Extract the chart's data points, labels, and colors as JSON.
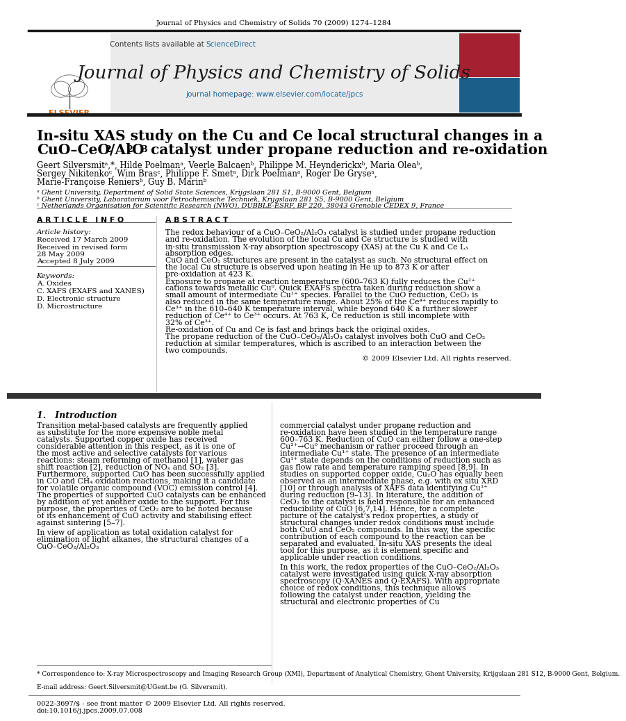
{
  "journal_ref": "Journal of Physics and Chemistry of Solids 70 (2009) 1274–1284",
  "journal_name": "Journal of Physics and Chemistry of Solids",
  "journal_url": "journal homepage: www.elsevier.com/locate/jpcs",
  "sciencedirect_text": "Contents lists available at ",
  "sciencedirect_link": "ScienceDirect",
  "title_line1": "In-situ XAS study on the Cu and Ce local structural changes in a",
  "title_line2": "CuO–CeO",
  "title_line2b": "2",
  "title_line2c": "/Al",
  "title_line2d": "2",
  "title_line2e": "O",
  "title_line2f": "3",
  "title_line2g": " catalyst under propane reduction and re-oxidation",
  "authors": "Geert Silversmitᵃ,*, Hilde Poelmanᵃ, Veerle Balcaenᵇ, Philippe M. Heynderickxᵇ, Maria Oleaᵇ,",
  "authors2": "Sergey Nikitenkoᶜ, Wim Brasᶜ, Philippe F. Smetᵃ, Dirk Poelmanᵃ, Roger De Gryseᵃ,",
  "authors3": "Marie-Françoise Reniersᵇ, Guy B. Marinᵇ",
  "aff_a": "ᵃ Ghent University, Department of Solid State Sciences, Krijgslaan 281 S1, B-9000 Gent, Belgium",
  "aff_b": "ᵇ Ghent University, Laboratorium voor Petrochemische Techniek, Krijgslaan 281 S5, B-9000 Gent, Belgium",
  "aff_c": "ᶜ Netherlands Organisation for Scientific Research (NWO), DUBBLE-ESRF, BP 220, 38043 Grenoble CEDEX 9, France",
  "article_info_header": "A R T I C L E   I N F O",
  "abstract_header": "A B S T R A C T",
  "article_history": "Article history:",
  "received": "Received 17 March 2009",
  "revised": "Received in revised form",
  "revised2": "28 May 2009",
  "accepted": "Accepted 8 July 2009",
  "keywords_header": "Keywords:",
  "kw1": "A. Oxides",
  "kw2": "C. XAFS (EXAFS and XANES)",
  "kw3": "D. Electronic structure",
  "kw4": "D. Microstructure",
  "abstract_para1": "The redox behaviour of a CuO–CeO₂/Al₂O₃ catalyst is studied under propane reduction and re-oxidation. The evolution of the local Cu and Ce structure is studied with in-situ transmission X-ray absorption spectroscopy (XAS) at the Cu K and Ce L₃ absorption edges.",
  "abstract_para2": "    CuO and CeO₂ structures are present in the catalyst as such. No structural effect on the local Cu structure is observed upon heating in He up to 873 K or after pre-oxidation at 423 K.",
  "abstract_para3": "    Exposure to propane at reaction temperature (600–763 K) fully reduces the Cu²⁺ cations towards metallic Cu⁰. Quick EXAFS spectra taken during reduction show a small amount of intermediate Cu¹⁺ species. Parallel to the CuO reduction, CeO₂ is also reduced in the same temperature range. About 25% of the Ce⁴⁺ reduces rapidly to Ce³⁺ in the 610–640 K temperature interval, while beyond 640 K a further slower reduction of Ce⁴⁺ to Ce³⁺ occurs. At 763 K, Ce reduction is still incomplete with 32% of Ce³⁺.",
  "abstract_para4": "    Re-oxidation of Cu and Ce is fast and brings back the original oxides.",
  "abstract_para5": "    The propane reduction of the CuO–CeO₂/Al₂O₃ catalyst involves both CuO and CeO₂ reduction at similar temperatures, which is ascribed to an interaction between the two compounds.",
  "copyright": "© 2009 Elsevier Ltd. All rights reserved.",
  "intro_header": "1.   Introduction",
  "intro_col1_para1": "Transition metal-based catalysts are frequently applied as substitute for the more expensive noble metal catalysts. Supported copper oxide has received considerable attention in this respect, as it is one of the most active and selective catalysts for various reactions: steam reforming of methanol [1], water gas shift reaction [2], reduction of NOₓ and SO₂ [3]. Furthermore, supported CuO has been successfully applied in CO and CH₄ oxidation reactions, making it a candidate for volatile organic compound (VOC) emission control [4]. The properties of supported CuO catalysts can be enhanced by addition of yet another oxide to the support. For this purpose, the properties of CeO₂ are to be noted because of its enhancement of CuO activity and stabilising effect against sintering [5–7].",
  "intro_col1_para2": "    In view of application as total oxidation catalyst for elimination of light alkanes, the structural changes of a CuO–CeO₂/Al₂O₃",
  "intro_col2_para1": "commercial catalyst under propane reduction and re-oxidation have been studied in the temperature range 600–763 K. Reduction of CuO can either follow a one-step Cu²⁺→Cu⁰ mechanism or rather proceed through an intermediate Cu¹⁺ state. The presence of an intermediate Cu¹⁺ state depends on the conditions of reduction such as gas flow rate and temperature ramping speed [8,9]. In studies on supported copper oxide, Cu₂O has equally been observed as an intermediate phase, e.g. with ex situ XRD [10] or through analysis of XAFS data identifying Cu¹⁺ during reduction [9–13]. In literature, the addition of CeO₂ to the catalyst is held responsible for an enhanced reducibility of CuO [6,7,14]. Hence, for a complete picture of the catalyst’s redox properties, a study of structural changes under redox conditions must include both CuO and CeO₂ compounds. In this way, the specific contribution of each compound to the reaction can be separated and evaluated. In-situ XAS presents the ideal tool for this purpose, as it is element specific and applicable under reaction conditions.",
  "intro_col2_para2": "    In this work, the redox properties of the CuO–CeO₂/Al₂O₃ catalyst were investigated using quick X-ray absorption spectroscopy (Q-XANES and Q-EXAFS). With appropriate choice of redox conditions, this technique allows following the catalyst under reaction, yielding the structural and electronic properties of Cu",
  "footnote1": "* Correspondence to: X-ray Microspectroscopy and Imaging Research Group (XMI), Department of Analytical Chemistry, Ghent University, Krijgslaan 281 S12, B-9000 Gent, Belgium.",
  "footnote2": "E-mail address: Geert.Silversmit@UGent.be (G. Silversmit).",
  "footer1": "0022-3697/$ - see front matter © 2009 Elsevier Ltd. All rights reserved.",
  "footer2": "doi:10.1016/j.jpcs.2009.07.008",
  "bg_color": "#ffffff",
  "header_bg": "#e8e8e8",
  "black_bar_color": "#1a1a1a",
  "gray_bar_color": "#555555",
  "blue_color": "#1a6496",
  "orange_color": "#d95c00",
  "text_color": "#000000",
  "light_gray_text": "#444444"
}
